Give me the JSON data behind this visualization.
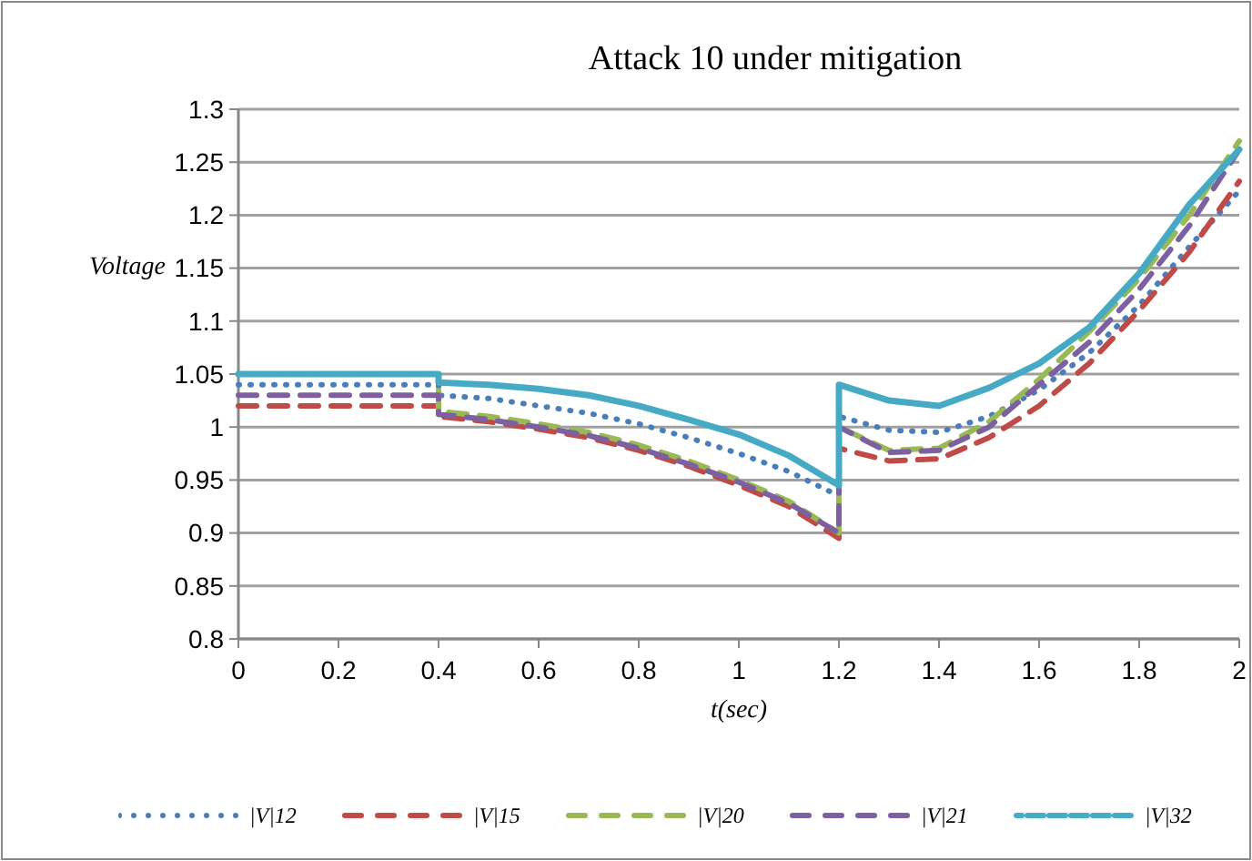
{
  "chart_data": {
    "type": "line",
    "title": "Attack 10 under mitigation",
    "xlabel": "t(sec)",
    "ylabel": "Voltage",
    "x": [
      0,
      0.4,
      0.4,
      0.5,
      0.6,
      0.7,
      0.8,
      0.9,
      1.0,
      1.1,
      1.2,
      1.2,
      1.3,
      1.4,
      1.5,
      1.6,
      1.7,
      1.8,
      1.9,
      2.0
    ],
    "xlim": [
      0,
      2
    ],
    "xticks": [
      0,
      0.2,
      0.4,
      0.6,
      0.8,
      1,
      1.2,
      1.4,
      1.6,
      1.8,
      2
    ],
    "ylim": [
      0.8,
      1.3
    ],
    "yticks": [
      0.8,
      0.85,
      0.9,
      0.95,
      1,
      1.05,
      1.1,
      1.15,
      1.2,
      1.25,
      1.3
    ],
    "grid": "y",
    "legend": "bottom",
    "marker": "none",
    "series": [
      {
        "name": "|V|12",
        "color": "#4a7ebb",
        "line_style": "dotted",
        "values": [
          1.04,
          1.04,
          1.03,
          1.027,
          1.02,
          1.013,
          1.003,
          0.99,
          0.975,
          0.958,
          0.935,
          1.01,
          0.997,
          0.995,
          1.01,
          1.035,
          1.07,
          1.115,
          1.17,
          1.223
        ]
      },
      {
        "name": "|V|15",
        "color": "#be4b48",
        "line_style": "dashed",
        "values": [
          1.02,
          1.02,
          1.01,
          1.005,
          0.998,
          0.99,
          0.978,
          0.963,
          0.945,
          0.925,
          0.895,
          0.98,
          0.968,
          0.97,
          0.99,
          1.02,
          1.06,
          1.11,
          1.165,
          1.232
        ]
      },
      {
        "name": "|V|20",
        "color": "#98b954",
        "line_style": "dashed",
        "values": [
          1.05,
          1.05,
          1.015,
          1.01,
          1.003,
          0.995,
          0.983,
          0.968,
          0.95,
          0.93,
          0.9,
          1.0,
          0.978,
          0.98,
          1.005,
          1.045,
          1.09,
          1.14,
          1.2,
          1.27
        ]
      },
      {
        "name": "|V|21",
        "color": "#7d60a0",
        "line_style": "dashed",
        "values": [
          1.03,
          1.03,
          1.012,
          1.007,
          1.0,
          0.992,
          0.98,
          0.965,
          0.948,
          0.928,
          0.9,
          1.0,
          0.976,
          0.978,
          1.0,
          1.04,
          1.08,
          1.13,
          1.19,
          1.262
        ]
      },
      {
        "name": "|V|32",
        "color": "#46aac5",
        "line_style": "solid",
        "values": [
          1.05,
          1.05,
          1.042,
          1.04,
          1.036,
          1.03,
          1.02,
          1.007,
          0.993,
          0.973,
          0.945,
          1.04,
          1.025,
          1.02,
          1.037,
          1.06,
          1.094,
          1.145,
          1.21,
          1.262
        ]
      }
    ]
  }
}
